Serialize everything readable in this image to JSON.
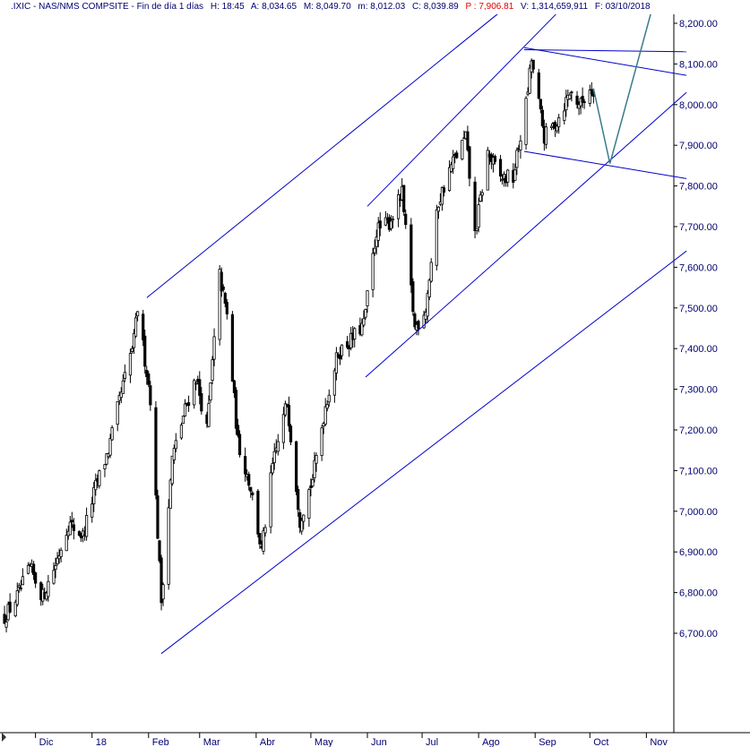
{
  "header": {
    "symbol": ".IXIC - NAS/NMS COMPSITE - Fin de día 1 días",
    "time": "H: 18:45",
    "open": "A: 8,034.65",
    "high": "M: 8,049.70",
    "low": "m: 8,012.03",
    "close": "C: 8,039.89",
    "price": "P : 7,906.81",
    "volume": "V: 1,314,659,911",
    "date": "F: 03/10/2018"
  },
  "colors": {
    "axis_text": "#00006e",
    "trend_line": "#0000cc",
    "projection_arrow": "#3a7a8c",
    "candles": "#000000",
    "price_highlight": "#e00000"
  },
  "chart_data": {
    "type": "candlestick",
    "title": "",
    "xlabel": "",
    "ylabel": "",
    "ylim": [
      6620,
      8240
    ],
    "y_ticks": [
      "8,200.00",
      "8,100.00",
      "8,000.00",
      "7,900.00",
      "7,800.00",
      "7,700.00",
      "7,600.00",
      "7,500.00",
      "7,400.00",
      "7,300.00",
      "7,200.00",
      "7,100.00",
      "7,000.00",
      "6,900.00",
      "6,800.00",
      "6,700.00"
    ],
    "x_ticks": [
      "Dic",
      "18",
      "Feb",
      "Mar",
      "Abr",
      "May",
      "Jun",
      "Jul",
      "Ago",
      "Sep",
      "Oct",
      "Nov"
    ],
    "x_range": [
      "2017-11-13",
      "2018-11-25"
    ],
    "grid": false,
    "legend": "none",
    "series": [
      {
        "values": [
          [
            "2017-11-14",
            6740
          ],
          [
            "2017-11-21",
            6790
          ],
          [
            "2017-11-28",
            6860
          ],
          [
            "2017-12-05",
            6790
          ],
          [
            "2017-12-12",
            6870
          ],
          [
            "2017-12-19",
            6970
          ],
          [
            "2017-12-27",
            6940
          ],
          [
            "2018-01-03",
            7060
          ],
          [
            "2018-01-10",
            7150
          ],
          [
            "2018-01-17",
            7290
          ],
          [
            "2018-01-24",
            7420
          ],
          [
            "2018-01-26",
            7500
          ],
          [
            "2018-02-02",
            7280
          ],
          [
            "2018-02-08",
            6780
          ],
          [
            "2018-02-14",
            7130
          ],
          [
            "2018-02-21",
            7250
          ],
          [
            "2018-02-27",
            7330
          ],
          [
            "2018-03-05",
            7200
          ],
          [
            "2018-03-12",
            7580
          ],
          [
            "2018-03-16",
            7480
          ],
          [
            "2018-03-22",
            7170
          ],
          [
            "2018-03-29",
            7060
          ],
          [
            "2018-04-04",
            6900
          ],
          [
            "2018-04-10",
            7110
          ],
          [
            "2018-04-18",
            7270
          ],
          [
            "2018-04-25",
            6980
          ],
          [
            "2018-05-02",
            7080
          ],
          [
            "2018-05-09",
            7260
          ],
          [
            "2018-05-16",
            7390
          ],
          [
            "2018-05-23",
            7420
          ],
          [
            "2018-05-30",
            7460
          ],
          [
            "2018-06-06",
            7690
          ],
          [
            "2018-06-13",
            7710
          ],
          [
            "2018-06-20",
            7780
          ],
          [
            "2018-06-27",
            7450
          ],
          [
            "2018-07-03",
            7500
          ],
          [
            "2018-07-10",
            7760
          ],
          [
            "2018-07-17",
            7850
          ],
          [
            "2018-07-25",
            7920
          ],
          [
            "2018-07-30",
            7680
          ],
          [
            "2018-08-06",
            7880
          ],
          [
            "2018-08-13",
            7820
          ],
          [
            "2018-08-20",
            7820
          ],
          [
            "2018-08-27",
            8000
          ],
          [
            "2018-08-30",
            8110
          ],
          [
            "2018-09-06",
            7920
          ],
          [
            "2018-09-13",
            7960
          ],
          [
            "2018-09-20",
            8030
          ],
          [
            "2018-09-26",
            8000
          ],
          [
            "2018-10-01",
            8040
          ],
          [
            "2018-10-03",
            8039
          ]
        ]
      }
    ],
    "annotations": [
      {
        "kind": "trend-line",
        "points": [
          [
            "2018-02-08",
            6650
          ],
          [
            "2018-11-23",
            7640
          ]
        ]
      },
      {
        "kind": "trend-line",
        "points": [
          [
            "2018-01-31",
            7525
          ],
          [
            "2018-08-12",
            8225
          ]
        ]
      },
      {
        "kind": "trend-line",
        "points": [
          [
            "2018-05-31",
            7330
          ],
          [
            "2018-11-23",
            8030
          ]
        ]
      },
      {
        "kind": "trend-line",
        "points": [
          [
            "2018-06-01",
            7750
          ],
          [
            "2018-09-13",
            8225
          ]
        ]
      },
      {
        "kind": "trend-line",
        "points": [
          [
            "2018-08-26",
            8135
          ],
          [
            "2018-11-23",
            8130
          ]
        ]
      },
      {
        "kind": "trend-line",
        "points": [
          [
            "2018-08-26",
            8140
          ],
          [
            "2018-11-23",
            8072
          ]
        ]
      },
      {
        "kind": "trend-line",
        "points": [
          [
            "2018-08-26",
            7885
          ],
          [
            "2018-11-23",
            7818
          ]
        ]
      },
      {
        "kind": "projection-arrow",
        "points": [
          [
            "2018-10-03",
            8040
          ],
          [
            "2018-10-12",
            7855
          ],
          [
            "2018-11-05",
            8250
          ]
        ]
      }
    ]
  }
}
